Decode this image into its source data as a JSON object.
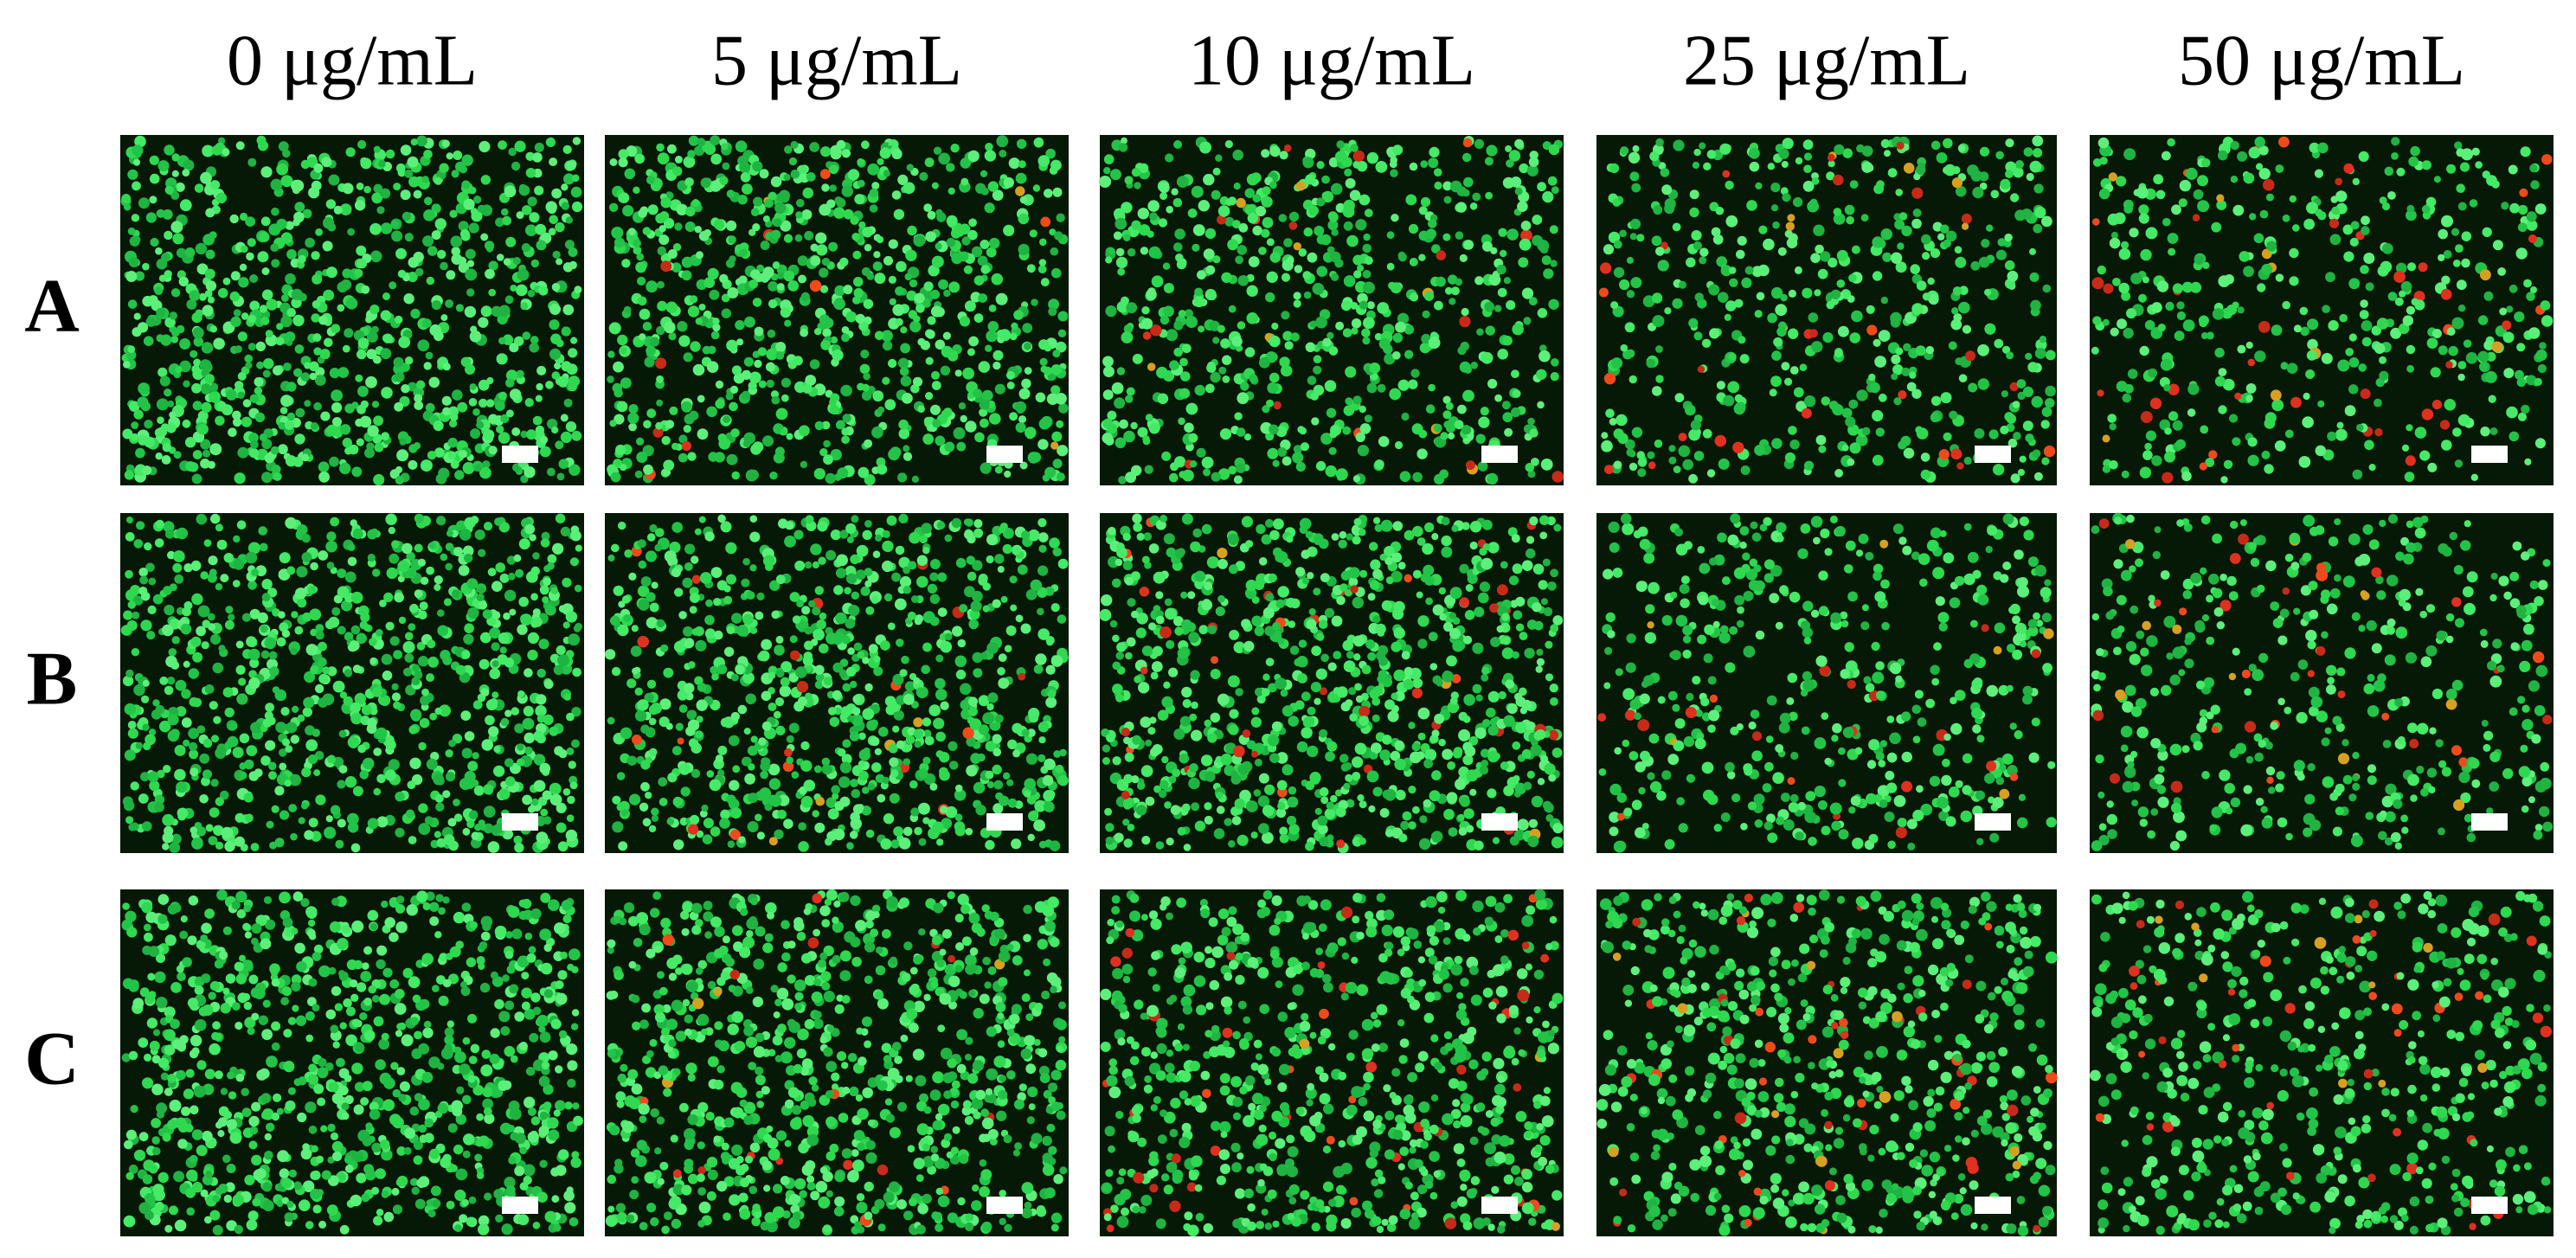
{
  "column_headers": [
    "0 μg/mL",
    "5 μg/mL",
    "10 μg/mL",
    "25 μg/mL",
    "50 μg/mL"
  ],
  "row_labels": [
    "A",
    "B",
    "C"
  ]
}
